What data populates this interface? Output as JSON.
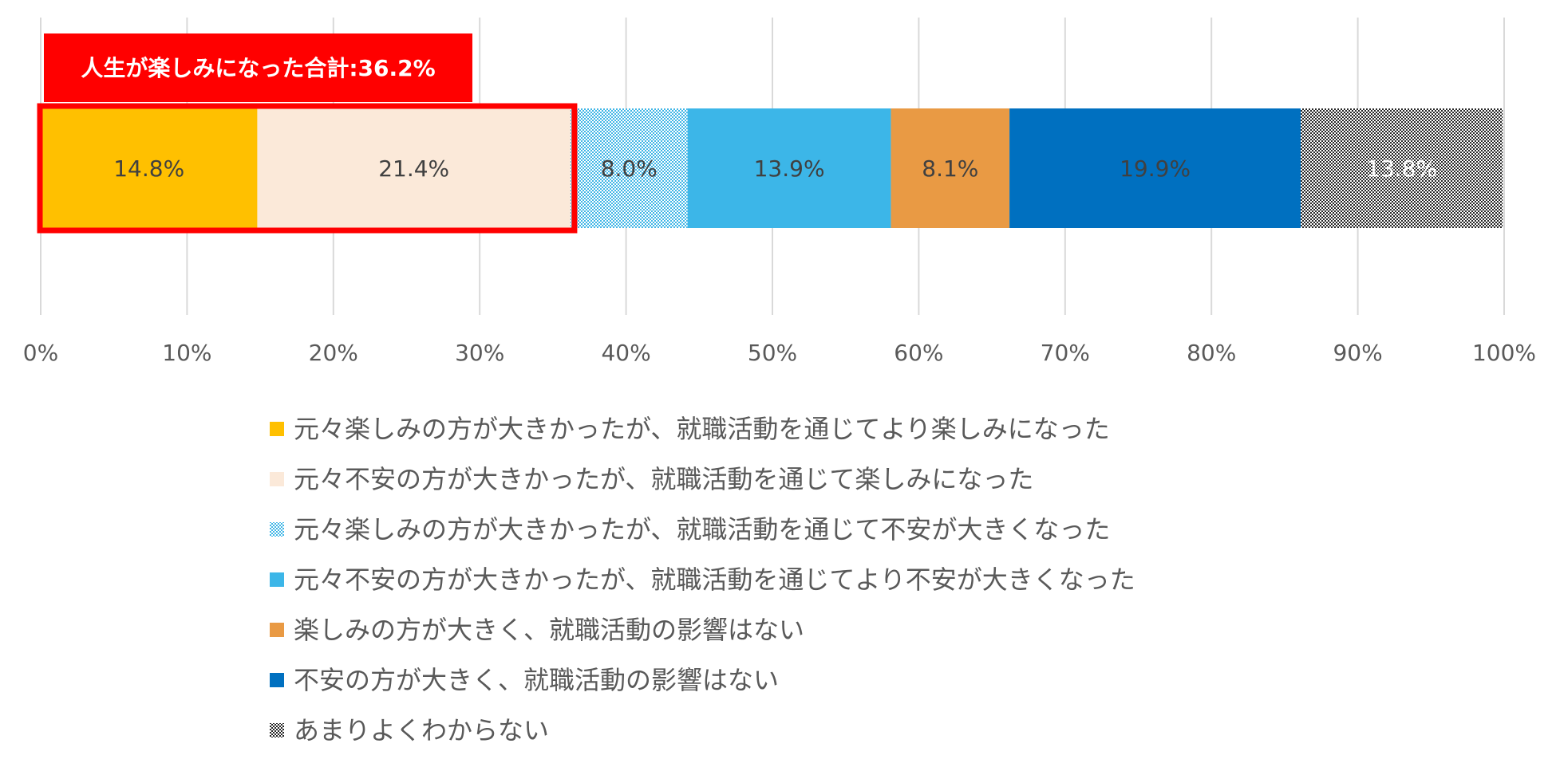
{
  "callout": {
    "text": "人生が楽しみになった合計:36.2%",
    "color": "#ff0000",
    "covers_series": [
      0,
      1
    ]
  },
  "chart_data": {
    "type": "bar",
    "orientation": "horizontal",
    "stacked": true,
    "percent": true,
    "categories": [
      ""
    ],
    "xlim": [
      0,
      100
    ],
    "xticks": [
      "0%",
      "10%",
      "20%",
      "30%",
      "40%",
      "50%",
      "60%",
      "70%",
      "80%",
      "90%",
      "100%"
    ],
    "grid": true,
    "legend": "bottom",
    "series": [
      {
        "name": "元々楽しみの方が大きかったが、就職活動を通じてより楽しみになった",
        "values": [
          14.8
        ],
        "label": "14.8%",
        "color": "#ffc000",
        "pattern": "solid"
      },
      {
        "name": "元々不安の方が大きかったが、就職活動を通じて楽しみになった",
        "values": [
          21.4
        ],
        "label": "21.4%",
        "color": "#fbe9d9",
        "pattern": "solid"
      },
      {
        "name": "元々楽しみの方が大きかったが、就職活動を通じて不安が大きくなった",
        "values": [
          8.0
        ],
        "label": "8.0%",
        "color": "#41b6e6",
        "pattern": "dotted"
      },
      {
        "name": "元々不安の方が大きかったが、就職活動を通じてより不安が大きくなった",
        "values": [
          13.9
        ],
        "label": "13.9%",
        "color": "#3cb6e8",
        "pattern": "solid"
      },
      {
        "name": "楽しみの方が大きく、就職活動の影響はない",
        "values": [
          8.1
        ],
        "label": "8.1%",
        "color": "#e99a44",
        "pattern": "solid"
      },
      {
        "name": "不安の方が大きく、就職活動の影響はない",
        "values": [
          19.9
        ],
        "label": "19.9%",
        "color": "#0070c0",
        "pattern": "solid"
      },
      {
        "name": "あまりよくわからない",
        "values": [
          13.8
        ],
        "label": "13.8%",
        "color": "#262626",
        "pattern": "checker"
      }
    ]
  }
}
